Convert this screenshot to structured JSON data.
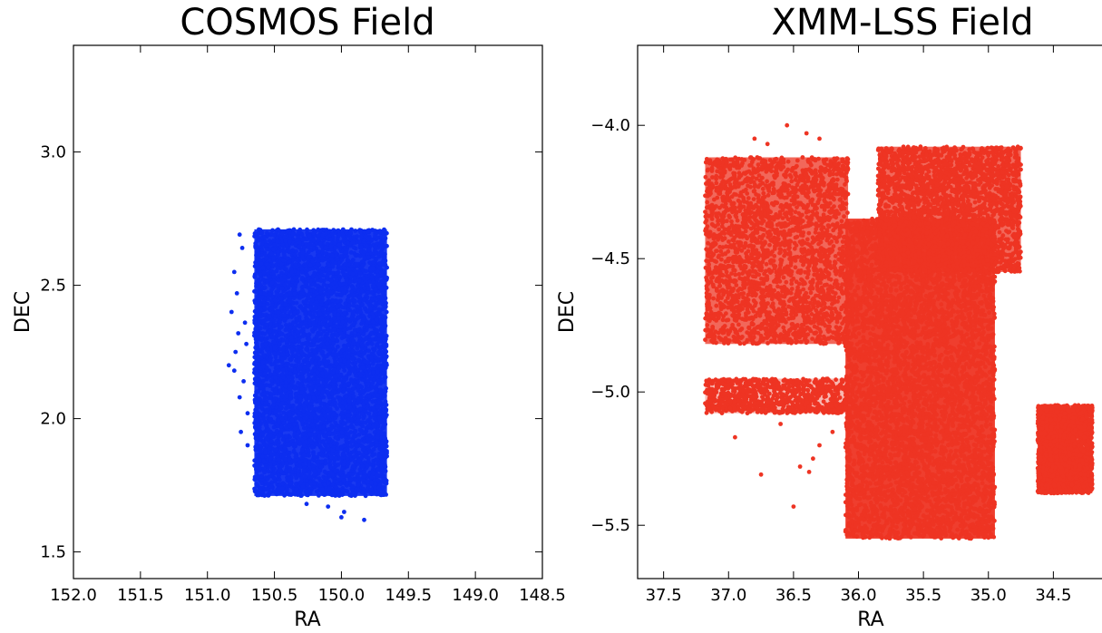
{
  "chart_data": [
    {
      "type": "scatter",
      "title": "COSMOS Field",
      "xlabel": "RA",
      "ylabel": "DEC",
      "xlim": [
        152.0,
        148.5
      ],
      "ylim": [
        1.4,
        3.4
      ],
      "x_inverted": true,
      "xticks": [
        152.0,
        151.5,
        151.0,
        150.5,
        150.0,
        149.5,
        149.0,
        148.5
      ],
      "xtick_labels": [
        "152.0",
        "151.5",
        "151.0",
        "150.5",
        "150.0",
        "149.5",
        "149.0",
        "148.5"
      ],
      "yticks": [
        1.5,
        2.0,
        2.5,
        3.0
      ],
      "ytick_labels": [
        "1.5",
        "2.0",
        "2.5",
        "3.0"
      ],
      "color": "#0d2ef0",
      "grid": false,
      "series": [
        {
          "regions": [
            {
              "ra": [
                150.65,
                149.66
              ],
              "dec": [
                1.71,
                2.71
              ],
              "density": "very high"
            }
          ],
          "points": [
            [
              150.76,
              2.69
            ],
            [
              150.74,
              2.64
            ],
            [
              150.8,
              2.55
            ],
            [
              150.78,
              2.47
            ],
            [
              150.82,
              2.4
            ],
            [
              150.72,
              2.36
            ],
            [
              150.77,
              2.32
            ],
            [
              150.71,
              2.28
            ],
            [
              150.79,
              2.25
            ],
            [
              150.84,
              2.2
            ],
            [
              150.8,
              2.18
            ],
            [
              150.73,
              2.14
            ],
            [
              150.76,
              2.08
            ],
            [
              150.7,
              2.02
            ],
            [
              150.75,
              1.95
            ],
            [
              150.7,
              1.9
            ],
            [
              150.26,
              1.68
            ],
            [
              150.1,
              1.67
            ],
            [
              150.0,
              1.63
            ],
            [
              149.98,
              1.65
            ],
            [
              149.83,
              1.62
            ]
          ]
        }
      ]
    },
    {
      "type": "scatter",
      "title": "XMM-LSS Field",
      "xlabel": "RA",
      "ylabel": "DEC",
      "xlim": [
        37.7,
        34.0
      ],
      "ylim": [
        -5.7,
        -3.7
      ],
      "x_inverted": true,
      "xticks": [
        37.5,
        37.0,
        36.5,
        36.0,
        35.5,
        35.0,
        34.5
      ],
      "xtick_labels": [
        "37.5",
        "37.0",
        "36.5",
        "36.0",
        "35.5",
        "35.0",
        "34.5"
      ],
      "yticks": [
        -5.5,
        -5.0,
        -4.5,
        -4.0
      ],
      "ytick_labels": [
        "−5.5",
        "−5.0",
        "−4.5",
        "−4.0"
      ],
      "color": "#ee3423",
      "grid": false,
      "series": [
        {
          "regions": [
            {
              "ra": [
                37.18,
                36.08
              ],
              "dec": [
                -4.82,
                -4.12
              ],
              "density": "high"
            },
            {
              "ra": [
                37.18,
                36.08
              ],
              "dec": [
                -5.08,
                -4.95
              ],
              "density": "medium"
            },
            {
              "ra": [
                36.1,
                34.95
              ],
              "dec": [
                -5.55,
                -4.35
              ],
              "density": "very high"
            },
            {
              "ra": [
                35.85,
                34.75
              ],
              "dec": [
                -4.55,
                -4.08
              ],
              "density": "high"
            },
            {
              "ra": [
                34.62,
                34.2
              ],
              "dec": [
                -5.38,
                -5.05
              ],
              "density": "high"
            }
          ],
          "points": [
            [
              36.55,
              -4.0
            ],
            [
              36.8,
              -4.05
            ],
            [
              36.7,
              -4.07
            ],
            [
              36.4,
              -4.03
            ],
            [
              36.3,
              -4.05
            ],
            [
              36.95,
              -5.17
            ],
            [
              36.75,
              -5.31
            ],
            [
              36.6,
              -5.12
            ],
            [
              36.45,
              -5.28
            ],
            [
              36.5,
              -5.43
            ],
            [
              36.38,
              -5.3
            ],
            [
              36.3,
              -5.2
            ],
            [
              36.2,
              -5.15
            ],
            [
              36.35,
              -5.25
            ]
          ]
        }
      ]
    }
  ]
}
